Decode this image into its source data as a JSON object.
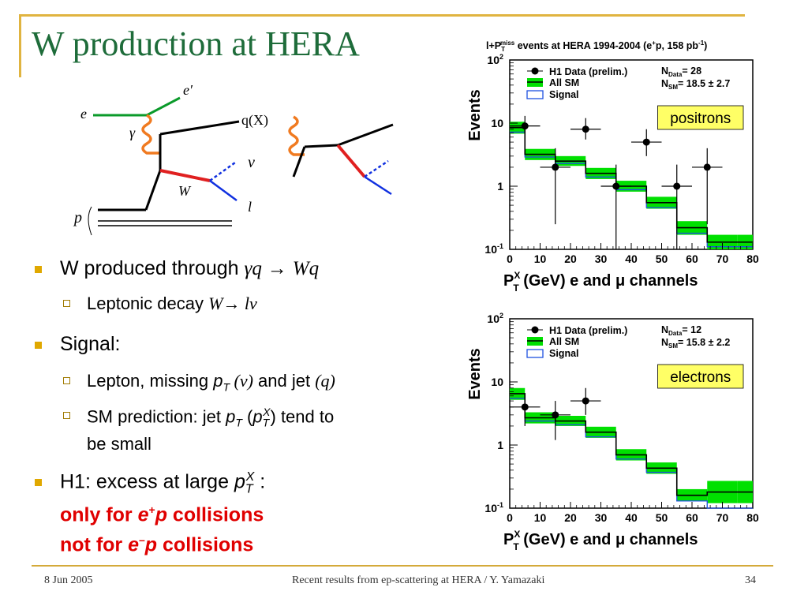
{
  "slide": {
    "title": "W production at HERA",
    "footer_date": "8 Jun 2005",
    "footer_center": "Recent results from ep-scattering at HERA / Y. Yamazaki",
    "page_number": "34"
  },
  "bullets": {
    "b1_text": "W produced through ",
    "b1_formula_a": "γq",
    "b1_arrow": "→",
    "b1_formula_b": "Wq",
    "s1_text": "Leptonic decay ",
    "s1_formula": "W→ lν",
    "b2_text": "Signal:",
    "s2_a": "Lepton, missing ",
    "s2_pt": "p",
    "s2_T": "T",
    "s2_nu": " (ν)",
    "s2_b": " and jet ",
    "s2_q": "(q)",
    "s3_a": "SM prediction: jet ",
    "s3_pt": "p",
    "s3_T": "T",
    "s3_paren_open": " (",
    "s3_pt2": "p",
    "s3_T2": "T",
    "s3_X": "X",
    "s3_b": ") tend to",
    "s3_c": "be small",
    "b3_a": "H1: excess at large ",
    "b3_pt": "p",
    "b3_T": "T",
    "b3_X": "X",
    "b3_colon": " :",
    "b3_red1_a": "only for ",
    "b3_red1_e": "e",
    "b3_red1_sup": "+",
    "b3_red1_p": "p",
    "b3_red1_b": " collisions",
    "b3_red2_a": "not for ",
    "b3_red2_e": "e",
    "b3_red2_sup": "–",
    "b3_red2_p": "p",
    "b3_red2_b": " collisions"
  },
  "diagram": {
    "e": "e",
    "e_prime": "e′",
    "gamma": "γ",
    "qX": "q(X)",
    "nu": "ν",
    "W": "W",
    "l": "l",
    "p": "p"
  },
  "chart_data": [
    {
      "type": "bar",
      "title": "l+P_T^miss events at HERA 1994-2004 (e+p, 158 pb-1)",
      "title_main": "l+P",
      "title_sub": "T",
      "title_sup": "miss",
      "title_rest": " events at HERA 1994-2004 (e",
      "title_sup2": "+",
      "title_rest2": "p, 158 pb",
      "title_sup3": "-1",
      "title_end": ")",
      "xlabel_main": "P",
      "xlabel_sup": "X",
      "xlabel_sub": "T",
      "xlabel_rest": " (GeV)   e and μ channels",
      "ylabel": "Events",
      "yscale": "log",
      "ylim": [
        0.1,
        100
      ],
      "xlim": [
        0,
        80
      ],
      "x_ticks": [
        "0",
        "10",
        "20",
        "30",
        "40",
        "50",
        "60",
        "70",
        "80"
      ],
      "y_ticks": [
        "10",
        "1",
        "10"
      ],
      "y_tick_exps": [
        "2",
        "",
        "-1"
      ],
      "legend": [
        "H1 Data (prelim.)",
        "All SM",
        "Signal"
      ],
      "n_data_label": "N",
      "n_data_sub": "Data",
      "n_data_value": "= 28",
      "n_sm_label": "N",
      "n_sm_sub": "SM",
      "n_sm_value": "= 18.5 ± 2.7",
      "tag": "positrons",
      "bins": [
        0,
        5,
        15,
        25,
        35,
        45,
        55,
        65,
        75,
        80
      ],
      "all_sm": [
        8.5,
        3.2,
        2.5,
        1.6,
        1.0,
        0.55,
        0.22,
        0.13,
        0.13
      ],
      "all_sm_band": [
        [
          6.8,
          10.5
        ],
        [
          2.6,
          3.9
        ],
        [
          2.1,
          3.0
        ],
        [
          1.3,
          1.95
        ],
        [
          0.82,
          1.22
        ],
        [
          0.44,
          0.68
        ],
        [
          0.17,
          0.28
        ],
        [
          0.1,
          0.17
        ],
        [
          0.1,
          0.17
        ]
      ],
      "signal": [
        7.2,
        2.9,
        2.3,
        1.4,
        0.88,
        0.46,
        0.18,
        0.11,
        0.11
      ],
      "data": [
        {
          "x": 5,
          "y": 9.0,
          "xerr": 5,
          "ylo": 6,
          "yhi": 13
        },
        {
          "x": 15,
          "y": 2.0,
          "xerr": 5,
          "ylo": 0.25,
          "yhi": 4
        },
        {
          "x": 25,
          "y": 8.0,
          "xerr": 5,
          "ylo": 5.5,
          "yhi": 12
        },
        {
          "x": 35,
          "y": 1.0,
          "xerr": 5,
          "ylo": 0.1,
          "yhi": 2.2
        },
        {
          "x": 45,
          "y": 5.0,
          "xerr": 5,
          "ylo": 3,
          "yhi": 8
        },
        {
          "x": 55,
          "y": 1.0,
          "xerr": 5,
          "ylo": 0.1,
          "yhi": 2.2
        },
        {
          "x": 65,
          "y": 2.0,
          "xerr": 5,
          "ylo": 0.25,
          "yhi": 4
        }
      ]
    },
    {
      "type": "bar",
      "xlabel_main": "P",
      "xlabel_sup": "X",
      "xlabel_sub": "T",
      "xlabel_rest": " (GeV)   e and μ channels",
      "ylabel": "Events",
      "yscale": "log",
      "ylim": [
        0.1,
        100
      ],
      "xlim": [
        0,
        80
      ],
      "x_ticks": [
        "0",
        "10",
        "20",
        "30",
        "40",
        "50",
        "60",
        "70",
        "80"
      ],
      "y_ticks": [
        "10",
        "1",
        "10"
      ],
      "y_tick_exps": [
        "2",
        "",
        "-1"
      ],
      "legend": [
        "H1 Data (prelim.)",
        "All SM",
        "Signal"
      ],
      "n_data_label": "N",
      "n_data_sub": "Data",
      "n_data_value": "= 12",
      "n_sm_label": "N",
      "n_sm_sub": "SM",
      "n_sm_value": "= 15.8 ± 2.2",
      "tag": "electrons",
      "bins": [
        0,
        5,
        15,
        25,
        35,
        45,
        55,
        65,
        75,
        80
      ],
      "all_sm": [
        6.5,
        2.7,
        2.4,
        1.6,
        0.7,
        0.43,
        0.16,
        0.18,
        0.18
      ],
      "all_sm_band": [
        [
          5.2,
          8.0
        ],
        [
          2.2,
          3.3
        ],
        [
          2.0,
          2.9
        ],
        [
          1.3,
          1.95
        ],
        [
          0.57,
          0.86
        ],
        [
          0.35,
          0.53
        ],
        [
          0.13,
          0.2
        ],
        [
          0.12,
          0.27
        ],
        [
          0.12,
          0.27
        ]
      ],
      "signal": [
        5.5,
        2.4,
        2.1,
        1.35,
        0.6,
        0.37,
        0.13,
        0.1,
        0.1
      ],
      "data": [
        {
          "x": 5,
          "y": 4.0,
          "xerr": 5,
          "ylo": 2,
          "yhi": 6.5
        },
        {
          "x": 15,
          "y": 3.0,
          "xerr": 5,
          "ylo": 1.2,
          "yhi": 5
        },
        {
          "x": 25,
          "y": 5.0,
          "xerr": 5,
          "ylo": 3,
          "yhi": 8
        }
      ]
    }
  ],
  "colors": {
    "title": "#1e6c3a",
    "bullet": "#e0a800",
    "highlight": "#e00000",
    "band": "#00e000",
    "signal": "#1e50e0",
    "tag_bg": "#ffff66"
  }
}
